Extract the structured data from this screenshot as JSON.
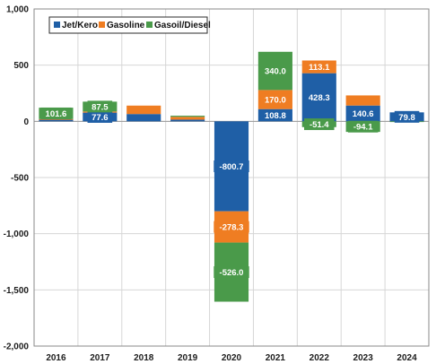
{
  "chart_data": {
    "type": "bar",
    "stacked": true,
    "categories": [
      "2016",
      "2017",
      "2018",
      "2019",
      "2020",
      "2021",
      "2022",
      "2023",
      "2024"
    ],
    "series": [
      {
        "name": "Jet/Kero",
        "color": "#1f5fa6",
        "values": [
          15,
          77.6,
          65,
          15,
          -800.7,
          108.8,
          428.3,
          140.6,
          79.8
        ],
        "labels": [
          "",
          "77.6",
          "",
          "",
          "-800.7",
          "108.8",
          "428.3",
          "140.6",
          "79.8"
        ]
      },
      {
        "name": "Gasoline",
        "color": "#ef7d22",
        "values": [
          5,
          10,
          75,
          25,
          -278.3,
          170.0,
          113.1,
          90,
          0
        ],
        "labels": [
          "",
          "",
          "",
          "",
          "-278.3",
          "170.0",
          "113.1",
          "",
          ""
        ]
      },
      {
        "name": "Gasoil/Diesel",
        "color": "#4a9a4a",
        "values": [
          101.6,
          87.5,
          0,
          10,
          -526.0,
          340.0,
          -51.4,
          -94.1,
          -5
        ],
        "labels": [
          "101.6",
          "87.5",
          "",
          "",
          "-526.0",
          "340.0",
          "-51.4",
          "-94.1",
          ""
        ]
      }
    ],
    "y_ticks": [
      "1,000",
      "500",
      "0",
      "-500",
      "-1,000",
      "-1,500",
      "-2,000"
    ],
    "ylim": [
      -2000,
      1000
    ],
    "ytick_step": 500,
    "grid": true,
    "legend_position": "top-left"
  }
}
